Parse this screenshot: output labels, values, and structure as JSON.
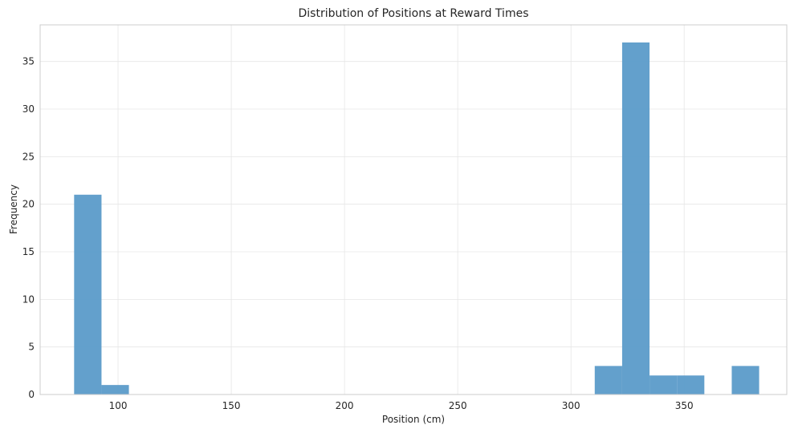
{
  "chart_data": {
    "type": "bar",
    "title": "Distribution of Positions at Reward Times",
    "xlabel": "Position (cm)",
    "ylabel": "Frequency",
    "xlim": [
      65.6,
      395.3
    ],
    "ylim": [
      0,
      38.85
    ],
    "xticks": [
      100,
      150,
      200,
      250,
      300,
      350
    ],
    "yticks": [
      0,
      5,
      10,
      15,
      20,
      25,
      30,
      35
    ],
    "grid": true,
    "bar_color": "#5b9bc9",
    "bins": [
      {
        "x0": 80.6,
        "x1": 92.7,
        "value": 21
      },
      {
        "x0": 92.7,
        "x1": 104.8,
        "value": 1
      },
      {
        "x0": 104.8,
        "x1": 116.9,
        "value": 0
      },
      {
        "x0": 116.9,
        "x1": 129.0,
        "value": 0
      },
      {
        "x0": 129.0,
        "x1": 141.1,
        "value": 0
      },
      {
        "x0": 141.1,
        "x1": 153.2,
        "value": 0
      },
      {
        "x0": 153.2,
        "x1": 165.3,
        "value": 0
      },
      {
        "x0": 165.3,
        "x1": 177.4,
        "value": 0
      },
      {
        "x0": 177.4,
        "x1": 189.5,
        "value": 0
      },
      {
        "x0": 189.5,
        "x1": 201.6,
        "value": 0
      },
      {
        "x0": 201.6,
        "x1": 213.7,
        "value": 0
      },
      {
        "x0": 213.7,
        "x1": 225.8,
        "value": 0
      },
      {
        "x0": 225.8,
        "x1": 237.9,
        "value": 0
      },
      {
        "x0": 237.9,
        "x1": 250.0,
        "value": 0
      },
      {
        "x0": 250.0,
        "x1": 262.1,
        "value": 0
      },
      {
        "x0": 262.1,
        "x1": 274.2,
        "value": 0
      },
      {
        "x0": 274.2,
        "x1": 286.3,
        "value": 0
      },
      {
        "x0": 286.3,
        "x1": 298.4,
        "value": 0
      },
      {
        "x0": 298.4,
        "x1": 310.5,
        "value": 0
      },
      {
        "x0": 310.5,
        "x1": 322.6,
        "value": 3
      },
      {
        "x0": 322.6,
        "x1": 334.7,
        "value": 37
      },
      {
        "x0": 334.7,
        "x1": 346.8,
        "value": 2
      },
      {
        "x0": 346.8,
        "x1": 358.9,
        "value": 2
      },
      {
        "x0": 358.9,
        "x1": 371.0,
        "value": 0
      },
      {
        "x0": 371.0,
        "x1": 383.1,
        "value": 3
      }
    ]
  }
}
